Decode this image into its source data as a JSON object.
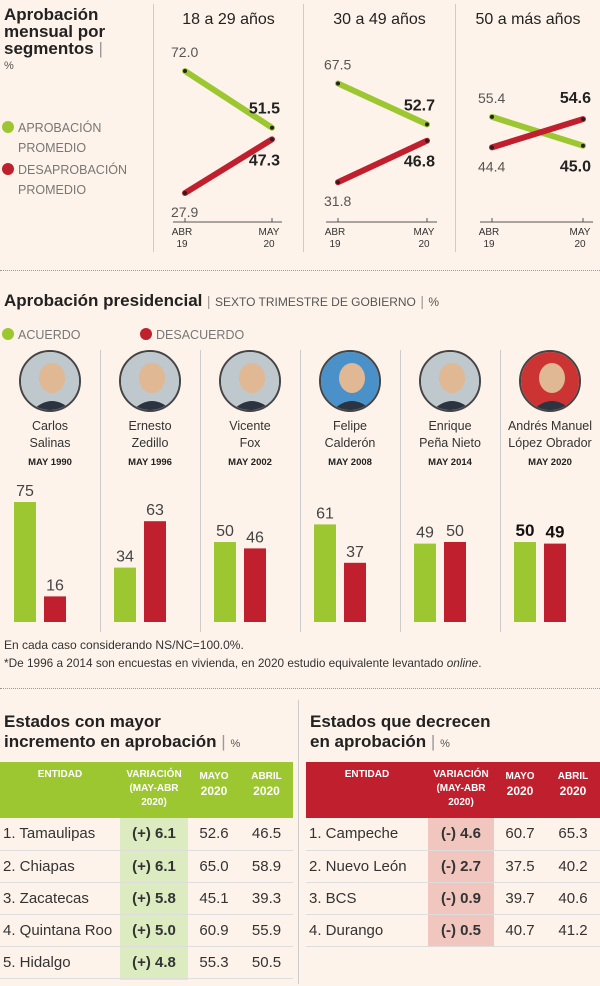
{
  "colors": {
    "green": "#9dc730",
    "red": "#c0202e",
    "green_light": "#dcecc0",
    "red_light": "#f0c6bf"
  },
  "section1": {
    "title_l1": "Aprobación",
    "title_l2": "mensual por",
    "title_l3": "segmentos",
    "unit": "%",
    "legend_green_l1": "APROBACIÓN",
    "legend_green_l2": "PROMEDIO",
    "legend_red_l1": "DESAPROBACIÓN",
    "legend_red_l2": "PROMEDIO"
  },
  "section2": {
    "title": "Aprobación presidencial",
    "subtitle": "SEXTO TRIMESTRE DE GOBIERNO",
    "unit": "%",
    "legend_green": "ACUERDO",
    "legend_red": "DESACUERDO"
  },
  "presidents": [
    {
      "name_l1": "Carlos",
      "name_l2": "Salinas",
      "date": "MAY 1990"
    },
    {
      "name_l1": "Ernesto",
      "name_l2": "Zedillo",
      "date": "MAY 1996"
    },
    {
      "name_l1": "Vicente",
      "name_l2": "Fox",
      "date": "MAY 2002"
    },
    {
      "name_l1": "Felipe",
      "name_l2": "Calderón",
      "date": "MAY 2008"
    },
    {
      "name_l1": "Enrique",
      "name_l2": "Peña Nieto",
      "date": "MAY 2014"
    },
    {
      "name_l1": "Andrés Manuel",
      "name_l2": "López Obrador",
      "date": "MAY 2020"
    }
  ],
  "notes": {
    "n1": "En cada caso considerando NS/NC=100.0%.",
    "n2a": "*De 1996 a 2014 son encuestas en vivienda, en 2020 estudio equivalente levantado ",
    "n2b": "online",
    "n2c": "."
  },
  "chart_data": [
    {
      "type": "line",
      "title": "18 a 29 años",
      "x": [
        "ABR 19",
        "MAY 20"
      ],
      "series": [
        {
          "name": "APROBACIÓN PROMEDIO",
          "values": [
            72.0,
            51.5
          ]
        },
        {
          "name": "DESAPROBACIÓN PROMEDIO",
          "values": [
            27.9,
            47.3
          ]
        }
      ],
      "labels": {
        "g0": "72.0",
        "g1": "51.5",
        "r0": "27.9",
        "r1": "47.3"
      }
    },
    {
      "type": "line",
      "title": "30 a 49 años",
      "x": [
        "ABR 19",
        "MAY 20"
      ],
      "series": [
        {
          "name": "APROBACIÓN PROMEDIO",
          "values": [
            67.5,
            52.7
          ]
        },
        {
          "name": "DESAPROBACIÓN PROMEDIO",
          "values": [
            31.8,
            46.8
          ]
        }
      ],
      "labels": {
        "g0": "67.5",
        "g1": "52.7",
        "r0": "31.8",
        "r1": "46.8"
      }
    },
    {
      "type": "line",
      "title": "50 a más años",
      "x": [
        "ABR 19",
        "MAY 20"
      ],
      "series": [
        {
          "name": "APROBACIÓN PROMEDIO",
          "values": [
            55.4,
            45.0
          ]
        },
        {
          "name": "DESAPROBACIÓN PROMEDIO",
          "values": [
            44.4,
            54.6
          ]
        }
      ],
      "labels": {
        "g0": "55.4",
        "g1": "45.0",
        "r0": "44.4",
        "r1": "54.6"
      }
    },
    {
      "type": "bar",
      "categories": [
        "Carlos Salinas",
        "Ernesto Zedillo",
        "Vicente Fox",
        "Felipe Calderón",
        "Enrique Peña Nieto",
        "Andrés Manuel López Obrador"
      ],
      "series": [
        {
          "name": "ACUERDO",
          "values": [
            75,
            34,
            50,
            61,
            49,
            50
          ]
        },
        {
          "name": "DESACUERDO",
          "values": [
            16,
            63,
            46,
            37,
            50,
            49
          ]
        }
      ]
    }
  ],
  "axis": {
    "abr": "ABR",
    "y19": "19",
    "may": "MAY",
    "y20": "20"
  },
  "table_up": {
    "title_l1": "Estados con mayor",
    "title_l2": "incremento en aprobación",
    "unit": "%",
    "h_entidad": "ENTIDAD",
    "h_var_l1": "VARIACIÓN",
    "h_var_l2": "(MAY-ABR",
    "h_var_l3": "2020)",
    "h_mayo_l1": "MAYO",
    "h_mayo_l2": "2020",
    "h_abril_l1": "ABRIL",
    "h_abril_l2": "2020",
    "rows": [
      [
        "1. Tamaulipas",
        "(+) 6.1",
        "52.6",
        "46.5"
      ],
      [
        "2. Chiapas",
        "(+) 6.1",
        "65.0",
        "58.9"
      ],
      [
        "3. Zacatecas",
        "(+) 5.8",
        "45.1",
        "39.3"
      ],
      [
        "4. Quintana Roo",
        "(+) 5.0",
        "60.9",
        "55.9"
      ],
      [
        "5. Hidalgo",
        "(+) 4.8",
        "55.3",
        "50.5"
      ]
    ]
  },
  "table_down": {
    "title_l1": "Estados que decrecen",
    "title_l2": "en aprobación",
    "unit": "%",
    "h_entidad": "ENTIDAD",
    "h_var_l1": "VARIACIÓN",
    "h_var_l2": "(MAY-ABR",
    "h_var_l3": "2020)",
    "h_mayo_l1": "MAYO",
    "h_mayo_l2": "2020",
    "h_abril_l1": "ABRIL",
    "h_abril_l2": "2020",
    "rows": [
      [
        "1. Campeche",
        "(-) 4.6",
        "60.7",
        "65.3"
      ],
      [
        "2. Nuevo León",
        "(-) 2.7",
        "37.5",
        "40.2"
      ],
      [
        "3. BCS",
        "(-) 0.9",
        "39.7",
        "40.6"
      ],
      [
        "4. Durango",
        "(-) 0.5",
        "40.7",
        "41.2"
      ]
    ]
  }
}
